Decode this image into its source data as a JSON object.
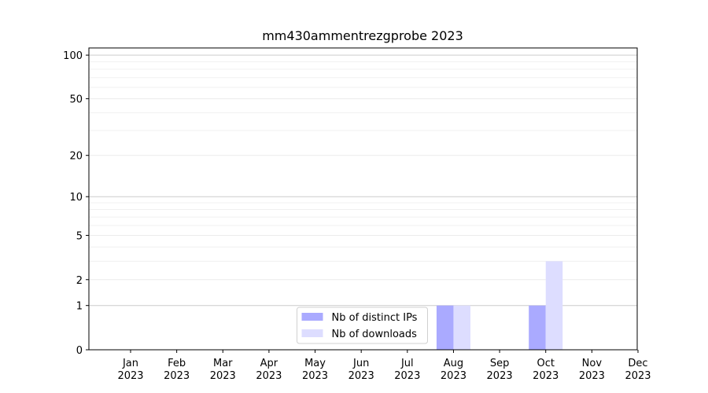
{
  "chart_data": {
    "type": "bar",
    "title": "mm430ammentrezgprobe 2023",
    "categories": [
      "Jan 2023",
      "Feb 2023",
      "Mar 2023",
      "Apr 2023",
      "May 2023",
      "Jun 2023",
      "Jul 2023",
      "Aug 2023",
      "Sep 2023",
      "Oct 2023",
      "Nov 2023",
      "Dec 2023"
    ],
    "series": [
      {
        "name": "Nb of distinct IPs",
        "color": "#aaaaff",
        "values": [
          0,
          0,
          0,
          0,
          0,
          0,
          0,
          1,
          0,
          1,
          0,
          0
        ]
      },
      {
        "name": "Nb of downloads",
        "color": "#ddddff",
        "values": [
          0,
          0,
          0,
          0,
          0,
          0,
          0,
          1,
          0,
          3,
          0,
          0
        ]
      }
    ],
    "yscale": "log1p",
    "ylim": [
      0,
      112
    ],
    "yticks": [
      0,
      1,
      2,
      5,
      10,
      20,
      50,
      100
    ],
    "minor_yticks": [
      3,
      4,
      6,
      7,
      8,
      9,
      30,
      40,
      60,
      70,
      80,
      90
    ],
    "grid": true,
    "legend": "lower center"
  }
}
